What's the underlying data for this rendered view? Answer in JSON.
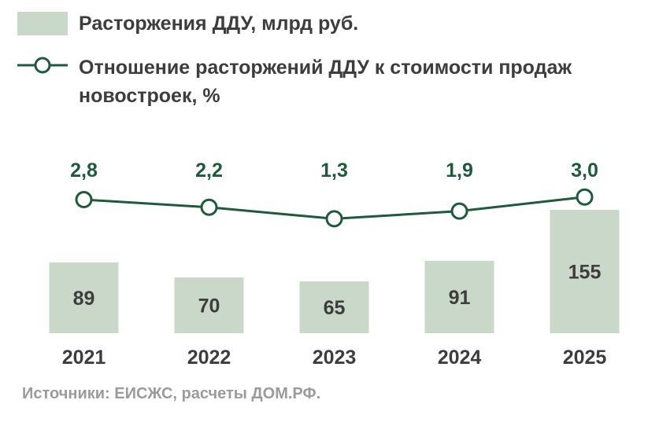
{
  "chart_data": {
    "type": "bar",
    "categories": [
      "2021",
      "2022",
      "2023",
      "2024",
      "2025"
    ],
    "series": [
      {
        "name": "Расторжения ДДУ, млрд руб.",
        "kind": "bar",
        "values": [
          89,
          70,
          65,
          91,
          155
        ],
        "labels": [
          "89",
          "70",
          "65",
          "91",
          "155"
        ]
      },
      {
        "name": "Отношение расторжений ДДУ к стоимости продаж новостроек, %",
        "kind": "line",
        "values": [
          2.8,
          2.2,
          1.3,
          1.9,
          3.0
        ],
        "labels": [
          "2,8",
          "2,2",
          "1,3",
          "1,9",
          "3,0"
        ]
      }
    ],
    "title": "",
    "xlabel": "",
    "ylabel": "",
    "grid": false,
    "legend": "top-left"
  },
  "colors": {
    "bar": "#c9d8c9",
    "line": "#1f5a3d",
    "text": "#3d3d3d",
    "source": "#9b9b9b"
  },
  "source": "Источники: ЕИСЖС, расчеты ДОМ.РФ."
}
